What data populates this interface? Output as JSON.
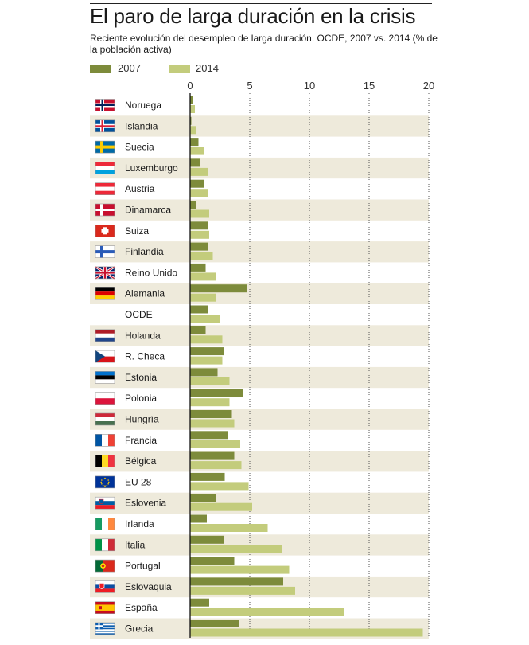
{
  "chart_data": {
    "type": "bar",
    "orientation": "horizontal",
    "title": "El paro de larga duración en la crisis",
    "subtitle": "Reciente evolución del desempleo de larga duración. OCDE, 2007 vs. 2014 (% de la población activa)",
    "xlim": [
      0,
      20
    ],
    "x_ticks": [
      "0",
      "5",
      "10",
      "15",
      "20"
    ],
    "grid": "vertical dotted",
    "legend": "top-left",
    "categories": [
      "Noruega",
      "Islandia",
      "Suecia",
      "Luxemburgo",
      "Austria",
      "Dinamarca",
      "Suiza",
      "Finlandia",
      "Reino Unido",
      "Alemania",
      "OCDE",
      "Holanda",
      "R. Checa",
      "Estonia",
      "Polonia",
      "Hungría",
      "Francia",
      "Bélgica",
      "EU 28",
      "Eslovenia",
      "Irlanda",
      "Italia",
      "Portugal",
      "Eslovaquia",
      "España",
      "Grecia"
    ],
    "flags": [
      "flag-norway-icon",
      "flag-iceland-icon",
      "flag-sweden-icon",
      "flag-luxembourg-icon",
      "flag-austria-icon",
      "flag-denmark-icon",
      "flag-switzerland-icon",
      "flag-finland-icon",
      "flag-uk-icon",
      "flag-germany-icon",
      "",
      "flag-netherlands-icon",
      "flag-czech-icon",
      "flag-estonia-icon",
      "flag-poland-icon",
      "flag-hungary-icon",
      "flag-france-icon",
      "flag-belgium-icon",
      "flag-eu-icon",
      "flag-slovenia-icon",
      "flag-ireland-icon",
      "flag-italy-icon",
      "flag-portugal-icon",
      "flag-slovakia-icon",
      "flag-spain-icon",
      "flag-greece-icon"
    ],
    "series": [
      {
        "name": "2007",
        "color": "#7d8b3b",
        "values": [
          0.2,
          0.1,
          0.7,
          0.8,
          1.2,
          0.5,
          1.5,
          1.5,
          1.3,
          4.8,
          1.5,
          1.3,
          2.8,
          2.3,
          4.4,
          3.5,
          3.2,
          3.7,
          2.9,
          2.2,
          1.4,
          2.8,
          3.7,
          7.8,
          1.6,
          4.1
        ]
      },
      {
        "name": "2014",
        "color": "#c3cc7c",
        "values": [
          0.4,
          0.5,
          1.2,
          1.5,
          1.5,
          1.6,
          1.6,
          1.9,
          2.2,
          2.2,
          2.5,
          2.7,
          2.7,
          3.3,
          3.3,
          3.7,
          4.2,
          4.3,
          4.9,
          5.2,
          6.5,
          7.7,
          8.3,
          8.8,
          12.9,
          19.5
        ]
      }
    ]
  }
}
